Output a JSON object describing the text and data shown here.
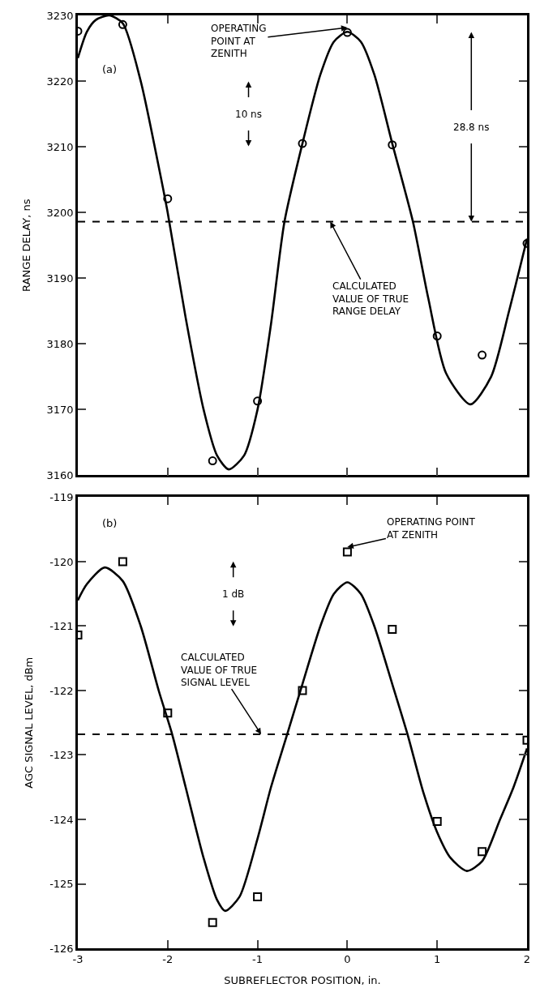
{
  "chart_data": [
    {
      "type": "line",
      "ylabel": "RANGE DELAY, ns",
      "xlim": [
        -3,
        2
      ],
      "ylim": [
        3160,
        3230
      ],
      "xticks": [
        -3,
        -2,
        -1,
        0,
        1,
        2
      ],
      "yticks": [
        3160,
        3170,
        3180,
        3190,
        3200,
        3210,
        3220,
        3230
      ],
      "tick_labels": "y",
      "series": [
        {
          "color": "#000000",
          "line_style": "solid",
          "x": [
            -3,
            -2.9,
            -2.8,
            -2.65,
            -2.5,
            -2.3,
            -2.1,
            -2.0,
            -1.8,
            -1.6,
            -1.45,
            -1.32,
            -1.15,
            -1.0,
            -0.85,
            -0.7,
            -0.5,
            -0.3,
            -0.15,
            0,
            0.15,
            0.3,
            0.5,
            0.73,
            0.9,
            1.1,
            1.37,
            1.6,
            1.8,
            2.0
          ],
          "values": [
            3223.5,
            3227.5,
            3229.3,
            3230,
            3228.8,
            3220,
            3207,
            3200,
            3184,
            3170,
            3163,
            3160.9,
            3163,
            3170,
            3183,
            3198.6,
            3210.5,
            3221,
            3226,
            3227.5,
            3226,
            3221,
            3210.5,
            3198.6,
            3187,
            3175.5,
            3170.8,
            3175,
            3185,
            3196
          ]
        },
        {
          "type": "scatter",
          "color": "#000000",
          "marker": "circle",
          "x": [
            -3,
            -2.5,
            -2,
            -1.5,
            -1,
            -0.5,
            0,
            0.5,
            1,
            1.5,
            2
          ],
          "values": [
            3227.6,
            3228.6,
            3202.1,
            3162.2,
            3171.3,
            3210.5,
            3227.4,
            3210.3,
            3181.2,
            3178.3,
            3195.3
          ]
        }
      ],
      "ref_lines": [
        {
          "axis": "y",
          "value": 3198.6,
          "label": "CALCULATED\nVALUE OF TRUE\nRANGE DELAY",
          "color": "#000000",
          "line_style": "dashed"
        }
      ],
      "annotations": [
        "(a)",
        {
          "text": "OPERATING\nPOINT AT\nZENITH",
          "x": 0,
          "y": 3227.4
        },
        {
          "text": "10 ns",
          "x": -1.1,
          "y": 3215
        },
        {
          "text": "28.8 ns",
          "x": 1.38,
          "y": 3198.6
        }
      ]
    },
    {
      "type": "line",
      "xlabel": "SUBREFLECTOR POSITION, in.",
      "ylabel": "AGC SIGNAL LEVEL, dBm",
      "xlim": [
        -3,
        2
      ],
      "ylim": [
        -126,
        -119
      ],
      "xticks": [
        -3,
        -2,
        -1,
        0,
        1,
        2
      ],
      "yticks": [
        -126,
        -125,
        -124,
        -123,
        -122,
        -121,
        -120,
        -119
      ],
      "series": [
        {
          "color": "#000000",
          "line_style": "solid",
          "x": [
            -3,
            -2.9,
            -2.7,
            -2.5,
            -2.3,
            -2.1,
            -1.95,
            -1.8,
            -1.6,
            -1.45,
            -1.36,
            -1.2,
            -1.0,
            -0.85,
            -0.67,
            -0.5,
            -0.3,
            -0.15,
            0,
            0.15,
            0.3,
            0.5,
            0.67,
            0.85,
            1.0,
            1.15,
            1.33,
            1.5,
            1.7,
            1.85,
            2.0
          ],
          "values": [
            -120.6,
            -120.35,
            -120.09,
            -120.3,
            -121.0,
            -122.0,
            -122.68,
            -123.5,
            -124.6,
            -125.25,
            -125.42,
            -125.2,
            -124.3,
            -123.5,
            -122.68,
            -121.9,
            -121.0,
            -120.5,
            -120.32,
            -120.5,
            -121.0,
            -121.9,
            -122.68,
            -123.6,
            -124.2,
            -124.6,
            -124.8,
            -124.65,
            -124.0,
            -123.5,
            -122.9
          ]
        },
        {
          "type": "scatter",
          "color": "#000000",
          "marker": "square",
          "x": [
            -3,
            -2.5,
            -2,
            -1.5,
            -1,
            -0.5,
            0,
            0.5,
            1,
            1.5,
            2
          ],
          "values": [
            -121.14,
            -120.0,
            -122.35,
            -125.6,
            -125.2,
            -122.0,
            -119.85,
            -121.05,
            -124.03,
            -124.5,
            -122.77
          ]
        }
      ],
      "ref_lines": [
        {
          "axis": "y",
          "value": -122.68,
          "label": "CALCULATED\nVALUE OF TRUE\nSIGNAL LEVEL",
          "color": "#000000",
          "line_style": "dashed"
        }
      ],
      "annotations": [
        "(b)",
        {
          "text": "OPERATING POINT\nAT ZENITH",
          "x": 0,
          "y": -119.85
        },
        {
          "text": "1 dB",
          "x": -1.27,
          "y": -120.5
        }
      ]
    }
  ]
}
